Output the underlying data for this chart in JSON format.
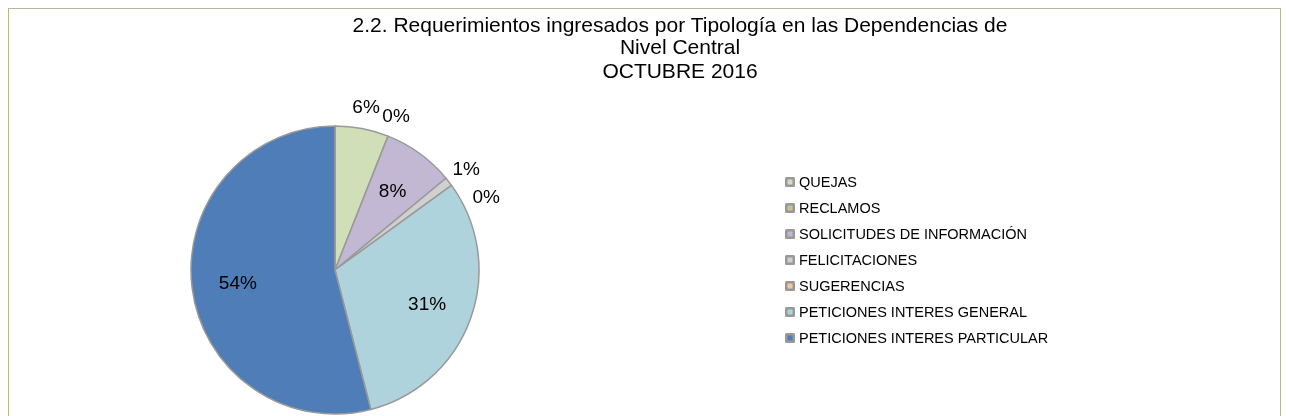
{
  "chart_data": {
    "type": "pie",
    "title": "2.2. Requerimientos ingresados por Tipología en las Dependencias de\nNivel Central",
    "subtitle": "OCTUBRE  2016",
    "categories": [
      "QUEJAS",
      "RECLAMOS",
      "SOLICITUDES DE INFORMACIÓN",
      "FELICITACIONES",
      "SUGERENCIAS",
      "PETICIONES INTERES GENERAL",
      "PETICIONES INTERES PARTICULAR"
    ],
    "values": [
      6,
      0,
      8,
      1,
      0,
      31,
      54
    ],
    "value_labels": [
      "6%",
      "0%",
      "8%",
      "1%",
      "0%",
      "31%",
      "54%"
    ],
    "colors": [
      "#d0dfb8",
      "#c9c48e",
      "#c3b8d3",
      "#d0d0d0",
      "#f2c9a4",
      "#aed3dd",
      "#4f7db7"
    ],
    "legend": "right"
  }
}
